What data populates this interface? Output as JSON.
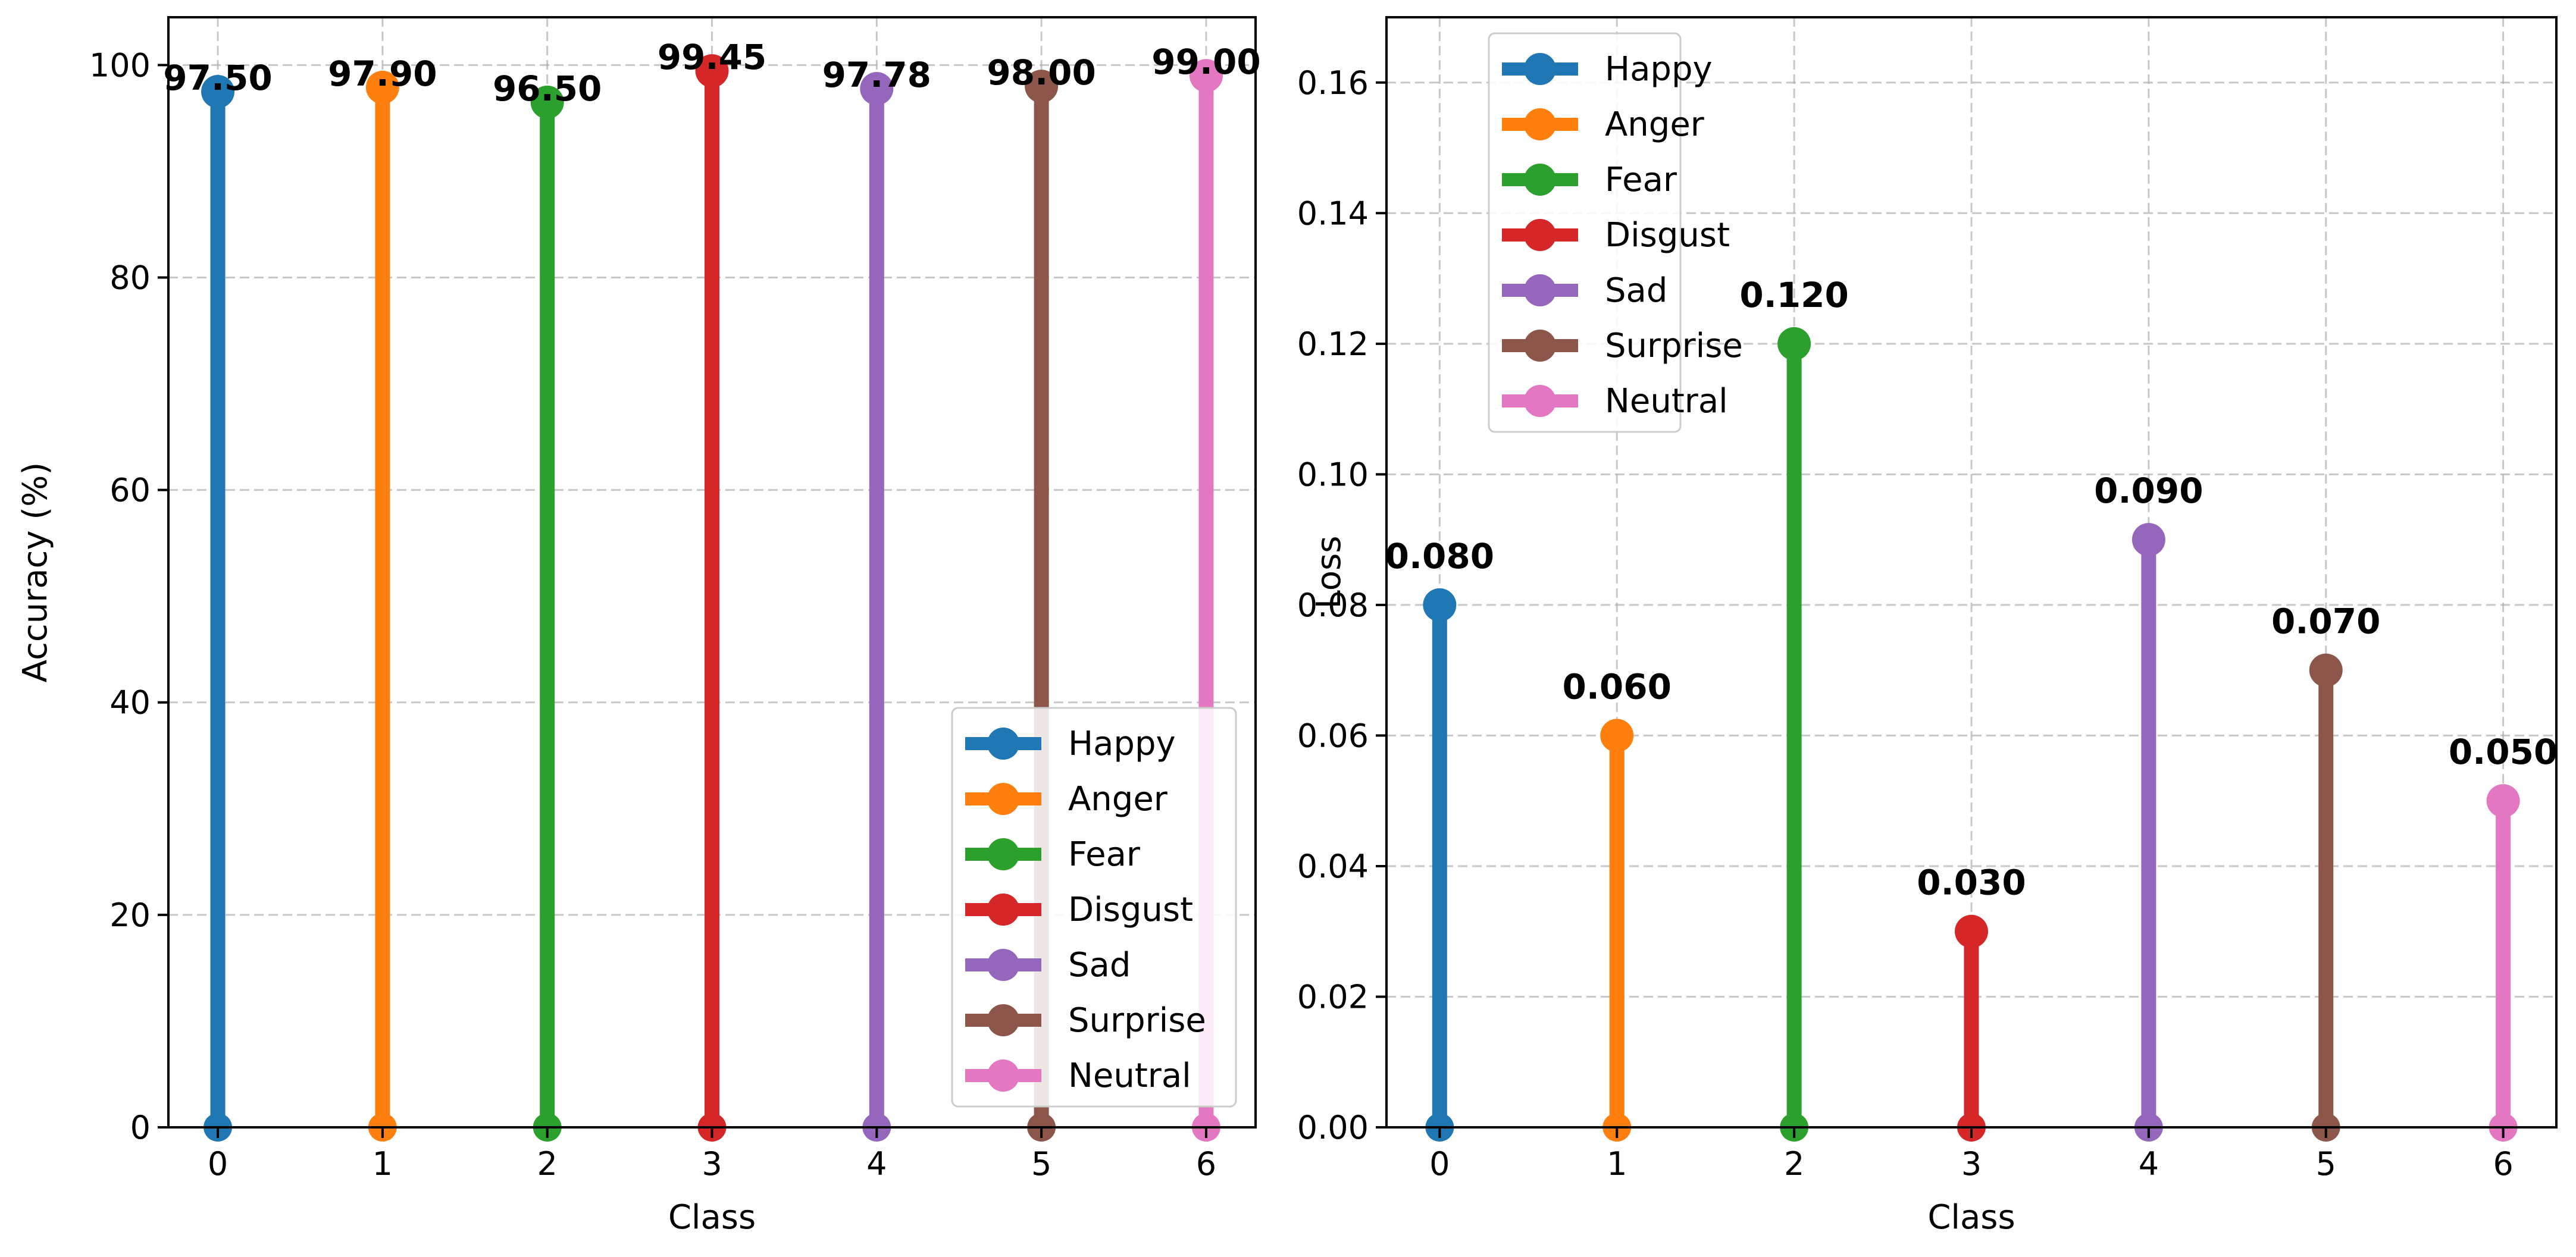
{
  "chart_data": [
    {
      "type": "stem",
      "title": "",
      "xlabel": "Class",
      "ylabel": "Accuracy (%)",
      "categories": [
        "0",
        "1",
        "2",
        "3",
        "4",
        "5",
        "6"
      ],
      "x": [
        0,
        1,
        2,
        3,
        4,
        5,
        6
      ],
      "values": [
        97.5,
        97.9,
        96.5,
        99.45,
        97.78,
        98.0,
        99.0
      ],
      "value_labels": [
        "97.50",
        "97.90",
        "96.50",
        "99.45",
        "97.78",
        "98.00",
        "99.00"
      ],
      "series_names": [
        "Happy",
        "Anger",
        "Fear",
        "Disgust",
        "Sad",
        "Surprise",
        "Neutral"
      ],
      "colors": [
        "#1f77b4",
        "#ff7f0e",
        "#2ca02c",
        "#d62728",
        "#9467bd",
        "#8c564b",
        "#e377c2"
      ],
      "xlim": [
        -0.3,
        6.3
      ],
      "ylim": [
        0,
        104.5
      ],
      "yticks": [
        0,
        20,
        40,
        60,
        80,
        100
      ],
      "ytick_labels": [
        "0",
        "20",
        "40",
        "60",
        "80",
        "100"
      ],
      "grid": true,
      "legend_position": "lower-right"
    },
    {
      "type": "stem",
      "title": "",
      "xlabel": "Class",
      "ylabel": "Loss",
      "categories": [
        "0",
        "1",
        "2",
        "3",
        "4",
        "5",
        "6"
      ],
      "x": [
        0,
        1,
        2,
        3,
        4,
        5,
        6
      ],
      "values": [
        0.08,
        0.06,
        0.12,
        0.03,
        0.09,
        0.07,
        0.05
      ],
      "value_labels": [
        "0.080",
        "0.060",
        "0.120",
        "0.030",
        "0.090",
        "0.070",
        "0.050"
      ],
      "series_names": [
        "Happy",
        "Anger",
        "Fear",
        "Disgust",
        "Sad",
        "Surprise",
        "Neutral"
      ],
      "colors": [
        "#1f77b4",
        "#ff7f0e",
        "#2ca02c",
        "#d62728",
        "#9467bd",
        "#8c564b",
        "#e377c2"
      ],
      "xlim": [
        -0.3,
        6.3
      ],
      "ylim": [
        0,
        0.17
      ],
      "yticks": [
        0,
        0.02,
        0.04,
        0.06,
        0.08,
        0.1,
        0.12,
        0.14,
        0.16
      ],
      "ytick_labels": [
        "0.00",
        "0.02",
        "0.04",
        "0.06",
        "0.08",
        "0.10",
        "0.12",
        "0.14",
        "0.16"
      ],
      "grid": true,
      "legend_position": "upper-left"
    }
  ]
}
